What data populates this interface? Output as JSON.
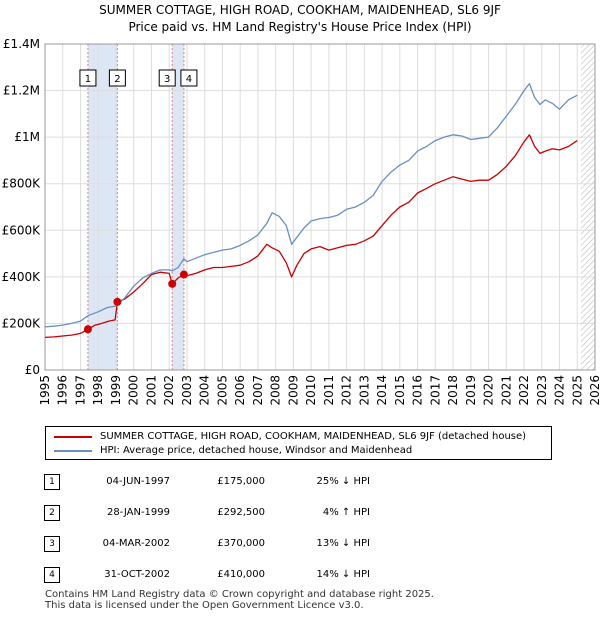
{
  "title_line1": "SUMMER COTTAGE, HIGH ROAD, COOKHAM, MAIDENHEAD, SL6 9JF",
  "title_line2": "Price paid vs. HM Land Registry's House Price Index (HPI)",
  "colors": {
    "price_line": "#cc0000",
    "hpi_line": "#6a8fc2",
    "marker": "#cc0000",
    "band": "#dde6f4",
    "vline": "#e08080",
    "grid": "#dddddd",
    "hatch": "#bbbbbb"
  },
  "chart_data": {
    "type": "line",
    "title": "Price paid vs. HM Land Registry's House Price Index (HPI)",
    "xlabel": "",
    "ylabel": "",
    "xlim": [
      1995,
      2026
    ],
    "ylim": [
      0,
      1400000
    ],
    "x_ticks": [
      1995,
      1996,
      1997,
      1998,
      1999,
      2000,
      2001,
      2002,
      2003,
      2004,
      2005,
      2006,
      2007,
      2008,
      2009,
      2010,
      2011,
      2012,
      2013,
      2014,
      2015,
      2016,
      2017,
      2018,
      2019,
      2020,
      2021,
      2022,
      2023,
      2024,
      2025,
      2026
    ],
    "x_tick_labels": [
      "1995",
      "1996",
      "1997",
      "1998",
      "1999",
      "2000",
      "2001",
      "2002",
      "2003",
      "2004",
      "2005",
      "2006",
      "2007",
      "2008",
      "2009",
      "2010",
      "2011",
      "2012",
      "2013",
      "2014",
      "2015",
      "2016",
      "2017",
      "2018",
      "2019",
      "2020",
      "2021",
      "2022",
      "2023",
      "2024",
      "2025",
      "2026"
    ],
    "y_ticks": [
      0,
      200000,
      400000,
      600000,
      800000,
      1000000,
      1200000,
      1400000
    ],
    "y_tick_labels": [
      "£0",
      "£200K",
      "£400K",
      "£600K",
      "£800K",
      "£1M",
      "£1.2M",
      "£1.4M"
    ],
    "grid": true,
    "shaded_ranges": [
      [
        1997.42,
        1999.08
      ],
      [
        2002.17,
        2002.83
      ]
    ],
    "future_hatch_from": 2025.2,
    "series": [
      {
        "name": "SUMMER COTTAGE, HIGH ROAD, COOKHAM, MAIDENHEAD, SL6 9JF (detached house)",
        "key": "price",
        "x": [
          1995,
          1995.5,
          1996,
          1996.5,
          1997,
          1997.42,
          1997.8,
          1998.2,
          1998.6,
          1998.95,
          1999.08,
          1999.5,
          2000,
          2000.5,
          2001,
          2001.5,
          2002,
          2002.17,
          2002.5,
          2002.83,
          2003,
          2003.5,
          2004,
          2004.5,
          2005,
          2005.5,
          2006,
          2006.5,
          2007,
          2007.5,
          2007.8,
          2008.2,
          2008.6,
          2008.9,
          2009.2,
          2009.6,
          2010,
          2010.5,
          2011,
          2011.5,
          2012,
          2012.5,
          2013,
          2013.5,
          2014,
          2014.5,
          2015,
          2015.5,
          2016,
          2016.5,
          2017,
          2017.5,
          2018,
          2018.5,
          2019,
          2019.5,
          2020,
          2020.5,
          2021,
          2021.5,
          2022,
          2022.3,
          2022.6,
          2022.9,
          2023.2,
          2023.6,
          2024,
          2024.5,
          2025
        ],
        "y": [
          140000,
          142000,
          146000,
          150000,
          157000,
          175000,
          192000,
          200000,
          210000,
          215000,
          292500,
          305000,
          335000,
          370000,
          410000,
          420000,
          415000,
          370000,
          395000,
          410000,
          405000,
          415000,
          430000,
          440000,
          440000,
          445000,
          450000,
          465000,
          490000,
          540000,
          525000,
          510000,
          460000,
          400000,
          450000,
          500000,
          520000,
          530000,
          515000,
          525000,
          535000,
          540000,
          555000,
          575000,
          620000,
          665000,
          700000,
          720000,
          760000,
          780000,
          800000,
          815000,
          830000,
          820000,
          810000,
          815000,
          815000,
          840000,
          875000,
          920000,
          980000,
          1010000,
          960000,
          930000,
          940000,
          950000,
          945000,
          960000,
          985000
        ]
      },
      {
        "name": "HPI: Average price, detached house, Windsor and Maidenhead",
        "key": "hpi",
        "x": [
          1995,
          1995.5,
          1996,
          1996.5,
          1997,
          1997.42,
          1998,
          1998.5,
          1999,
          1999.08,
          1999.5,
          2000,
          2000.5,
          2001,
          2001.5,
          2002,
          2002.17,
          2002.5,
          2002.83,
          2003,
          2003.5,
          2004,
          2004.5,
          2005,
          2005.5,
          2006,
          2006.5,
          2007,
          2007.5,
          2007.8,
          2008.2,
          2008.6,
          2008.9,
          2009.2,
          2009.6,
          2010,
          2010.5,
          2011,
          2011.5,
          2012,
          2012.5,
          2013,
          2013.5,
          2014,
          2014.5,
          2015,
          2015.5,
          2016,
          2016.5,
          2017,
          2017.5,
          2018,
          2018.5,
          2019,
          2019.5,
          2020,
          2020.5,
          2021,
          2021.5,
          2022,
          2022.3,
          2022.6,
          2022.9,
          2023.2,
          2023.6,
          2024,
          2024.5,
          2025
        ],
        "y": [
          185000,
          188000,
          193000,
          200000,
          210000,
          233000,
          250000,
          268000,
          275000,
          281000,
          310000,
          360000,
          395000,
          415000,
          430000,
          430000,
          425000,
          440000,
          478000,
          465000,
          480000,
          495000,
          505000,
          515000,
          520000,
          535000,
          555000,
          580000,
          630000,
          675000,
          660000,
          620000,
          540000,
          570000,
          610000,
          640000,
          650000,
          655000,
          665000,
          690000,
          700000,
          720000,
          750000,
          810000,
          850000,
          880000,
          900000,
          940000,
          960000,
          985000,
          1000000,
          1010000,
          1005000,
          990000,
          995000,
          1000000,
          1040000,
          1090000,
          1140000,
          1200000,
          1230000,
          1170000,
          1140000,
          1160000,
          1145000,
          1120000,
          1160000,
          1180000
        ]
      }
    ],
    "sales": [
      {
        "label": "1",
        "x": 1997.42,
        "y": 175000
      },
      {
        "label": "2",
        "x": 1999.08,
        "y": 292500
      },
      {
        "label": "3",
        "x": 2002.17,
        "y": 370000
      },
      {
        "label": "4",
        "x": 2002.83,
        "y": 410000
      }
    ]
  },
  "legend": {
    "price_label": "SUMMER COTTAGE, HIGH ROAD, COOKHAM, MAIDENHEAD, SL6 9JF (detached house)",
    "hpi_label": "HPI: Average price, detached house, Windsor and Maidenhead"
  },
  "transactions": [
    {
      "num": "1",
      "date": "04-JUN-1997",
      "price": "£175,000",
      "hpi": "25% ↓ HPI"
    },
    {
      "num": "2",
      "date": "28-JAN-1999",
      "price": "£292,500",
      "hpi": "4% ↑ HPI"
    },
    {
      "num": "3",
      "date": "04-MAR-2002",
      "price": "£370,000",
      "hpi": "13% ↓ HPI"
    },
    {
      "num": "4",
      "date": "31-OCT-2002",
      "price": "£410,000",
      "hpi": "14% ↓ HPI"
    }
  ],
  "footer": {
    "line1": "Contains HM Land Registry data © Crown copyright and database right 2025.",
    "line2": "This data is licensed under the Open Government Licence v3.0."
  }
}
